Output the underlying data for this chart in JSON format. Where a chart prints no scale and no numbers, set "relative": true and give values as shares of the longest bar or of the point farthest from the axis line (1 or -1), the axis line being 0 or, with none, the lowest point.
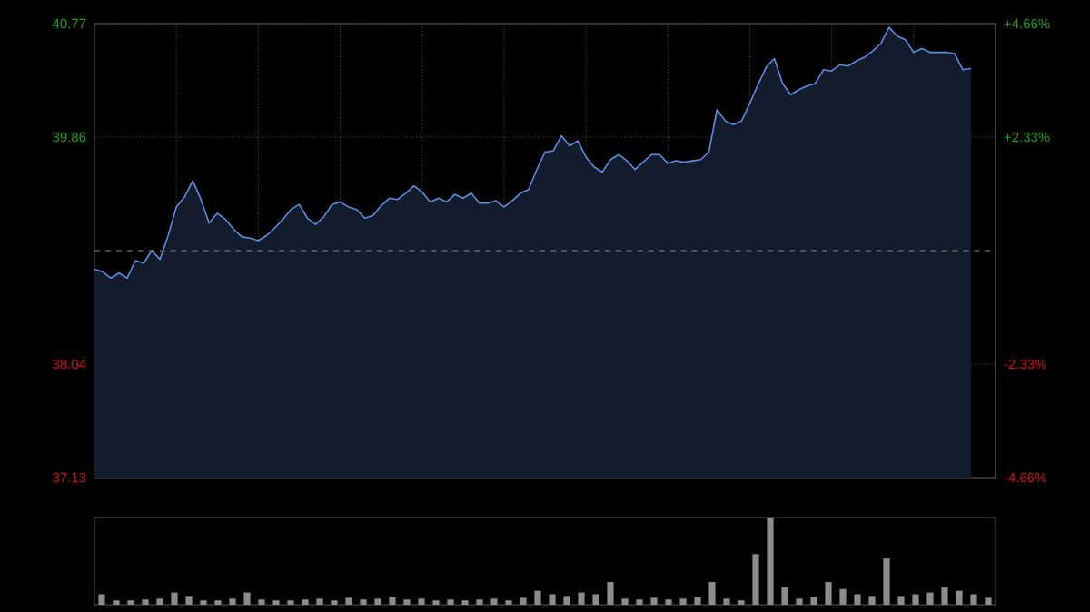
{
  "chart_data": [
    {
      "type": "area",
      "categories": [
        null,
        null,
        null,
        null,
        null,
        null,
        null,
        null,
        null,
        null,
        null,
        null,
        null,
        null,
        null,
        null,
        null,
        null,
        null,
        null,
        null,
        null,
        null,
        null,
        null,
        null,
        null,
        null,
        null,
        null,
        null,
        null,
        null,
        null,
        null,
        null,
        null,
        null,
        null,
        null,
        null,
        null,
        null,
        null,
        null,
        null,
        null,
        null,
        null,
        null,
        null,
        null,
        null,
        null,
        null,
        null,
        null,
        null,
        null,
        null,
        null,
        null,
        null,
        null,
        null,
        null,
        null,
        null,
        null,
        null,
        null,
        null,
        null,
        null,
        null,
        null,
        null,
        null,
        null,
        null,
        null,
        null,
        null,
        null,
        null,
        null,
        null,
        null,
        null,
        null,
        null,
        null,
        null,
        null,
        null,
        null,
        null,
        null,
        null,
        null,
        null,
        null,
        null,
        null,
        null,
        null,
        null,
        null,
        null,
        null,
        null
      ],
      "series": [
        {
          "color": "#5b8ee0",
          "values": [
            38.8,
            38.78,
            38.73,
            38.77,
            38.73,
            38.87,
            38.85,
            38.95,
            38.88,
            39.07,
            39.3,
            39.38,
            39.51,
            39.36,
            39.17,
            39.25,
            39.2,
            39.12,
            39.06,
            39.05,
            39.03,
            39.07,
            39.13,
            39.2,
            39.28,
            39.32,
            39.21,
            39.16,
            39.22,
            39.32,
            39.34,
            39.3,
            39.28,
            39.21,
            39.23,
            39.31,
            39.37,
            39.36,
            39.41,
            39.47,
            39.42,
            39.34,
            39.37,
            39.34,
            39.4,
            39.37,
            39.41,
            39.33,
            39.33,
            39.35,
            39.3,
            39.35,
            39.41,
            39.44,
            39.6,
            39.74,
            39.75,
            39.87,
            39.79,
            39.83,
            39.7,
            39.62,
            39.58,
            39.68,
            39.72,
            39.67,
            39.6,
            39.66,
            39.72,
            39.72,
            39.65,
            39.67,
            39.66,
            39.67,
            39.68,
            39.74,
            40.08,
            39.99,
            39.96,
            39.99,
            40.13,
            40.28,
            40.42,
            40.49,
            40.29,
            40.2,
            40.24,
            40.27,
            40.29,
            40.4,
            40.39,
            40.44,
            40.43,
            40.47,
            40.5,
            40.55,
            40.61,
            40.74,
            40.67,
            40.64,
            40.54,
            40.57,
            40.54,
            40.54,
            40.54,
            40.53,
            40.4,
            40.41,
            null,
            null,
            null
          ]
        }
      ],
      "ylim": [
        37.13,
        40.77
      ],
      "yticks": [
        37.13,
        38.04,
        39.86,
        40.77
      ],
      "y2lim": [
        -4.66,
        4.66
      ],
      "y2ticks": [
        {
          "value": -4.66,
          "label": "-4.66%"
        },
        {
          "value": -2.33,
          "label": "-2.33%"
        },
        {
          "value": 2.33,
          "label": "+2.33%"
        },
        {
          "value": 4.66,
          "label": "+4.66%"
        }
      ],
      "grid": true,
      "ref_lines": [
        {
          "axis": "y",
          "value": 38.95,
          "color": "#8a8a8a",
          "line_style": "dashed"
        }
      ]
    },
    {
      "type": "bar",
      "relative": true,
      "categories": [
        null,
        null,
        null,
        null,
        null,
        null,
        null,
        null,
        null,
        null,
        null,
        null,
        null,
        null,
        null,
        null,
        null,
        null,
        null,
        null,
        null,
        null,
        null,
        null,
        null,
        null,
        null,
        null,
        null,
        null,
        null,
        null,
        null,
        null,
        null,
        null,
        null,
        null,
        null,
        null,
        null,
        null,
        null,
        null,
        null,
        null,
        null,
        null,
        null,
        null,
        null,
        null,
        null,
        null,
        null,
        null,
        null,
        null,
        null,
        null,
        null,
        null
      ],
      "color": "#8c8c8c",
      "values": [
        0.12,
        0.05,
        0.05,
        0.06,
        0.07,
        0.14,
        0.1,
        0.05,
        0.05,
        0.07,
        0.14,
        0.06,
        0.05,
        0.05,
        0.06,
        0.07,
        0.05,
        0.08,
        0.06,
        0.07,
        0.09,
        0.06,
        0.07,
        0.05,
        0.06,
        0.05,
        0.06,
        0.07,
        0.05,
        0.08,
        0.16,
        0.12,
        0.1,
        0.14,
        0.12,
        0.26,
        0.07,
        0.06,
        0.08,
        0.06,
        0.07,
        0.09,
        0.26,
        0.07,
        0.05,
        0.58,
        1.0,
        0.2,
        0.07,
        0.09,
        0.26,
        0.18,
        0.12,
        0.1,
        0.53,
        0.1,
        0.12,
        0.14,
        0.2,
        0.16,
        0.12,
        0.08
      ]
    }
  ]
}
